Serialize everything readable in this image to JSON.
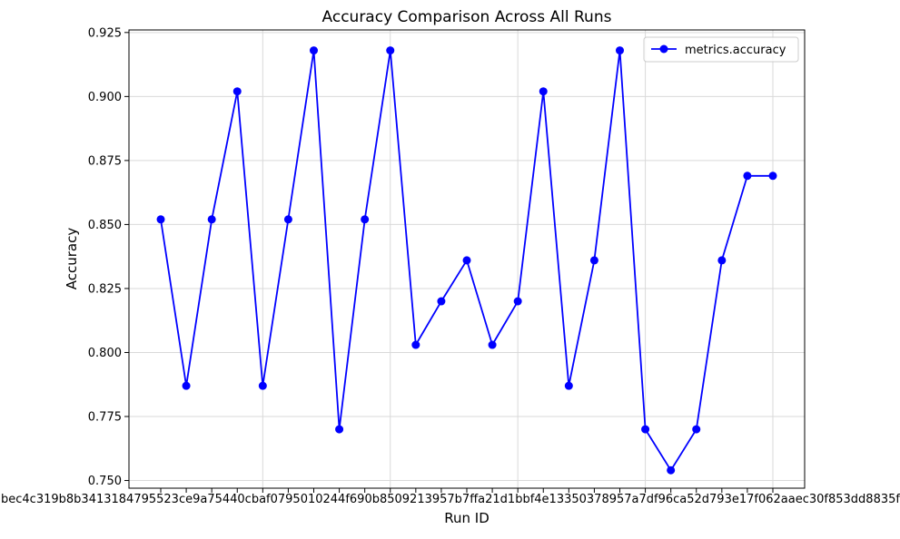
{
  "chart_data": {
    "type": "line",
    "title": "Accuracy Comparison Across All Runs",
    "xlabel": "Run ID",
    "ylabel": "Accuracy",
    "x_tick_text": "bec4c319b8b3413184795523ce9a75440cbaf0795010244f690b8509213957b7ffa21d1bbf4e13350378957a7df96ca52d793e17f062aaec30f853dd8835f",
    "ylim": [
      0.747,
      0.926
    ],
    "yticks": [
      0.75,
      0.775,
      0.8,
      0.825,
      0.85,
      0.875,
      0.9,
      0.925
    ],
    "ytick_labels": [
      "0.750",
      "0.775",
      "0.800",
      "0.825",
      "0.850",
      "0.875",
      "0.900",
      "0.925"
    ],
    "grid": true,
    "legend_position": "top-right",
    "series": [
      {
        "name": "metrics.accuracy",
        "color": "#0000ff",
        "marker": "circle",
        "values": [
          0.852,
          0.787,
          0.852,
          0.902,
          0.787,
          0.852,
          0.918,
          0.77,
          0.852,
          0.918,
          0.803,
          0.82,
          0.836,
          0.803,
          0.82,
          0.902,
          0.787,
          0.836,
          0.918,
          0.77,
          0.754,
          0.77,
          0.836,
          0.869,
          0.869
        ]
      }
    ]
  }
}
